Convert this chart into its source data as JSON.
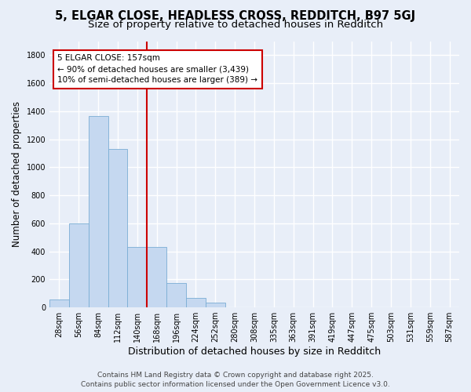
{
  "title_line1": "5, ELGAR CLOSE, HEADLESS CROSS, REDDITCH, B97 5GJ",
  "title_line2": "Size of property relative to detached houses in Redditch",
  "xlabel": "Distribution of detached houses by size in Redditch",
  "ylabel": "Number of detached properties",
  "categories": [
    "28sqm",
    "56sqm",
    "84sqm",
    "112sqm",
    "140sqm",
    "168sqm",
    "196sqm",
    "224sqm",
    "252sqm",
    "280sqm",
    "308sqm",
    "335sqm",
    "363sqm",
    "391sqm",
    "419sqm",
    "447sqm",
    "475sqm",
    "503sqm",
    "531sqm",
    "559sqm",
    "587sqm"
  ],
  "values": [
    55,
    600,
    1365,
    1130,
    430,
    430,
    175,
    65,
    35,
    0,
    0,
    0,
    0,
    0,
    0,
    0,
    0,
    0,
    0,
    0,
    0
  ],
  "bar_color": "#c5d8f0",
  "bar_edge_color": "#7aadd4",
  "vline_color": "#cc0000",
  "annotation_text": "5 ELGAR CLOSE: 157sqm\n← 90% of detached houses are smaller (3,439)\n10% of semi-detached houses are larger (389) →",
  "annotation_box_color": "white",
  "annotation_box_edge": "#cc0000",
  "ylim": [
    0,
    1900
  ],
  "yticks": [
    0,
    200,
    400,
    600,
    800,
    1000,
    1200,
    1400,
    1600,
    1800
  ],
  "background_color": "#e8eef8",
  "grid_color": "white",
  "footer_line1": "Contains HM Land Registry data © Crown copyright and database right 2025.",
  "footer_line2": "Contains public sector information licensed under the Open Government Licence v3.0.",
  "title_fontsize": 10.5,
  "subtitle_fontsize": 9.5,
  "xlabel_fontsize": 9,
  "ylabel_fontsize": 8.5,
  "tick_fontsize": 7,
  "annotation_fontsize": 7.5,
  "footer_fontsize": 6.5
}
